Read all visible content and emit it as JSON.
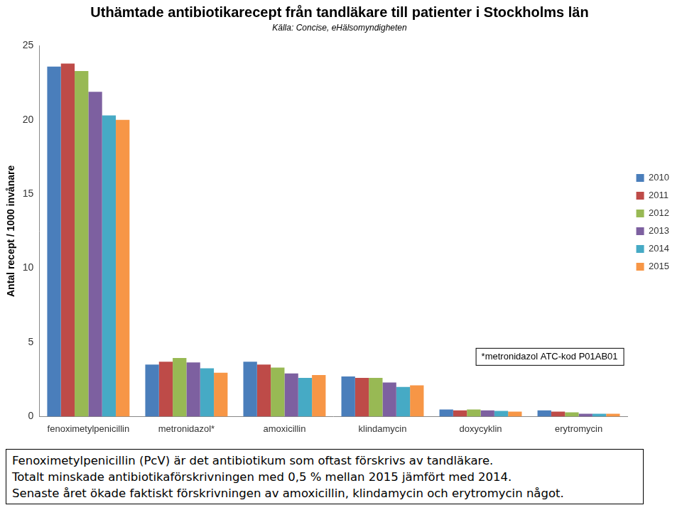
{
  "chart_data": {
    "type": "bar",
    "title": "Uthämtade antibiotikarecept från tandläkare till patienter i Stockholms län",
    "subtitle": "Källa: Concise, eHälsomyndigheten",
    "y_label": "Antal recept / 1000 invånare",
    "categories": [
      "fenoximetylpenicillin",
      "metronidazol*",
      "amoxicillin",
      "klindamycin",
      "doxycyklin",
      "erytromycin"
    ],
    "series": [
      {
        "name": "2010",
        "color": "#4a7ebb",
        "values": [
          23.6,
          3.5,
          3.7,
          2.7,
          0.47,
          0.42
        ]
      },
      {
        "name": "2011",
        "color": "#be4b48",
        "values": [
          23.8,
          3.7,
          3.5,
          2.6,
          0.42,
          0.33
        ]
      },
      {
        "name": "2012",
        "color": "#98b954",
        "values": [
          23.3,
          3.95,
          3.3,
          2.6,
          0.47,
          0.28
        ]
      },
      {
        "name": "2013",
        "color": "#7d60a0",
        "values": [
          21.9,
          3.65,
          2.9,
          2.3,
          0.42,
          0.19
        ]
      },
      {
        "name": "2014",
        "color": "#46aac5",
        "values": [
          20.3,
          3.25,
          2.6,
          2.0,
          0.38,
          0.19
        ]
      },
      {
        "name": "2015",
        "color": "#f79646",
        "values": [
          20.0,
          2.95,
          2.8,
          2.1,
          0.33,
          0.19
        ]
      }
    ],
    "ylim": [
      0,
      25
    ],
    "yticks": [
      0,
      5,
      10,
      15,
      20,
      25
    ],
    "grid": false,
    "legend": "right",
    "annotations": [
      "*metronidazol ATC-kod P01AB01"
    ],
    "footnote": [
      "Fenoximetylpenicillin (PcV) är det antibiotikum som oftast förskrivs av tandläkare.",
      "Totalt minskade antibiotikaförskrivningen med 0,5 % mellan 2015 jämfört med 2014.",
      "Senaste året ökade faktiskt förskrivningen av amoxicillin, klindamycin och erytromycin något."
    ]
  }
}
